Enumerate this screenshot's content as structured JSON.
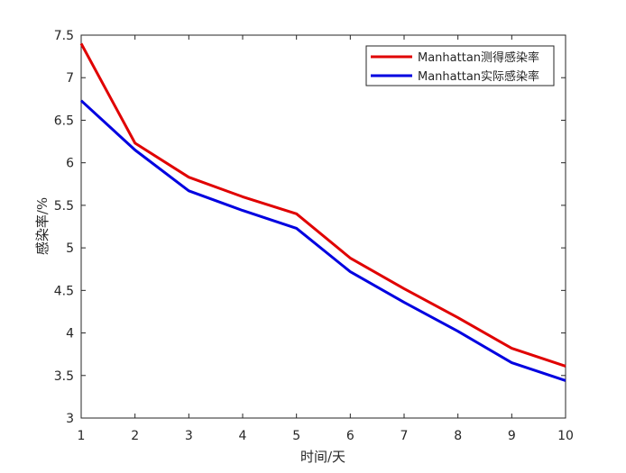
{
  "chart_data": {
    "type": "line",
    "title": "",
    "xlabel": "时间/天",
    "ylabel": "感染率/%",
    "x": [
      1,
      2,
      3,
      4,
      5,
      6,
      7,
      8,
      9,
      10
    ],
    "xlim": [
      1,
      10
    ],
    "ylim": [
      3,
      7.5
    ],
    "xticks": [
      1,
      2,
      3,
      4,
      5,
      6,
      7,
      8,
      9,
      10
    ],
    "yticks": [
      3,
      3.5,
      4,
      4.5,
      5,
      5.5,
      6,
      6.5,
      7,
      7.5
    ],
    "grid": false,
    "legend_position": "top-right",
    "series": [
      {
        "name": "Manhattan测得感染率",
        "color": "#e00000",
        "values": [
          7.4,
          6.23,
          5.83,
          5.6,
          5.4,
          4.88,
          4.52,
          4.18,
          3.82,
          3.61
        ]
      },
      {
        "name": "Manhattan实际感染率",
        "color": "#0000e0",
        "values": [
          6.73,
          6.15,
          5.67,
          5.44,
          5.23,
          4.72,
          4.36,
          4.02,
          3.65,
          3.44
        ]
      }
    ]
  }
}
